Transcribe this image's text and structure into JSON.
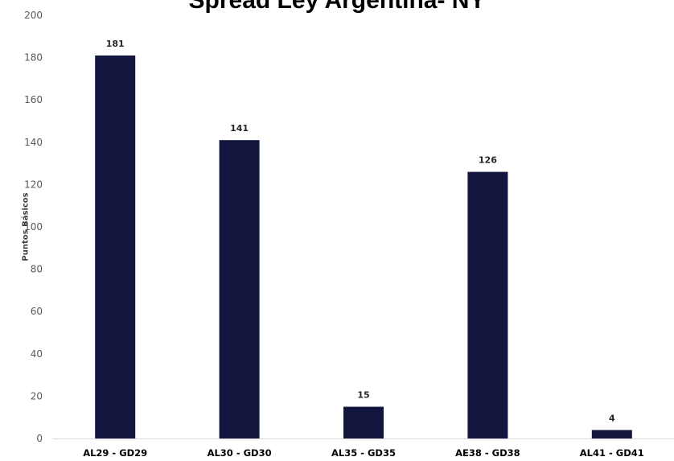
{
  "chart_data": {
    "type": "bar",
    "title": "Spread Ley Argentina- NY",
    "xlabel": "",
    "ylabel": "Puntos Básicos",
    "ylim": [
      0,
      200
    ],
    "yticks": [
      0,
      20,
      40,
      60,
      80,
      100,
      120,
      140,
      160,
      180,
      200
    ],
    "grid": false,
    "legend": "none",
    "categories": [
      "AL29 - GD29",
      "AL30 - GD30",
      "AL35 - GD35",
      "AE38 - GD38",
      "AL41 - GD41"
    ],
    "values": [
      181,
      141,
      15,
      126,
      4
    ],
    "data_labels": [
      "181",
      "141",
      "15",
      "126",
      "4"
    ],
    "colors": {
      "bar": "#12163f",
      "axis": "#d9d9d9"
    }
  }
}
